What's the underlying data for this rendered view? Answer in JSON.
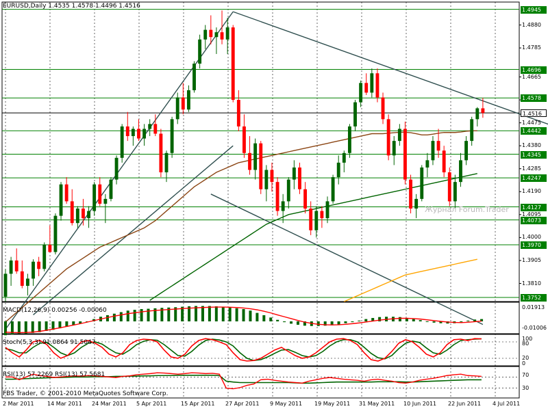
{
  "header": {
    "symbol_info": "EURUSD,Daily  1.4535 1.4578 1.4496 1.4516"
  },
  "footer": {
    "copyright": "FBS Trader, © 2001-2010 MetaQuotes Software Corp."
  },
  "watermark": "Журнал Forum.Trader",
  "colors": {
    "bull": "#006400",
    "bear": "#ff0000",
    "grid": "#000000",
    "hline": "#008000",
    "trend": "#2f4f4f",
    "ma_short": "#8b4513",
    "ma_mid": "#006400",
    "ma_long": "#ffa500"
  },
  "price_axis": {
    "labels": [
      "1.4880",
      "1.4785",
      "1.4665",
      "1.4570",
      "1.4475",
      "1.4380",
      "1.4285",
      "1.4190",
      "1.4095",
      "1.4000",
      "1.3905",
      "1.3810"
    ],
    "levels": [
      {
        "value": "1.4945"
      },
      {
        "value": "1.4696"
      },
      {
        "value": "1.4578"
      },
      {
        "value": "1.4516",
        "current": true
      },
      {
        "value": "1.4442"
      },
      {
        "value": "1.4345"
      },
      {
        "value": "1.4247"
      },
      {
        "value": "1.4127"
      },
      {
        "value": "1.4073"
      },
      {
        "value": "1.3970"
      },
      {
        "value": "1.3752"
      }
    ]
  },
  "dates": [
    "2 Mar 2011",
    "14 Mar 2011",
    "24 Mar 2011",
    "5 Apr 2011",
    "15 Apr 2011",
    "27 Apr 2011",
    "9 May 2011",
    "19 May 2011",
    "31 May 2011",
    "10 Jun 2011",
    "22 Jun 2011",
    "4 Jul 2011"
  ],
  "macd": {
    "label": "MACD(12,26,9) 0.00256 -0.00060",
    "axis": [
      "0.01913",
      "-0.01006"
    ],
    "histogram": [
      -0.9,
      -0.85,
      -0.8,
      -0.8,
      -0.75,
      -0.7,
      -0.62,
      -0.55,
      -0.45,
      -0.35,
      -0.25,
      -0.15,
      0,
      0.15,
      0.3,
      0.4,
      0.5,
      0.6,
      0.7,
      0.75,
      0.8,
      0.82,
      0.85,
      0.88,
      0.9,
      0.92,
      0.95,
      0.98,
      1,
      1,
      1,
      0.98,
      0.95,
      0.9,
      0.85,
      0.8,
      0.7,
      0.55,
      0.4,
      0.25,
      0.1,
      -0.05,
      -0.15,
      -0.22,
      -0.28,
      -0.3,
      -0.3,
      -0.28,
      -0.25,
      -0.2,
      -0.12,
      -0.05,
      0.05,
      0.15,
      0.22,
      0.28,
      0.3,
      0.3,
      0.28,
      0.22,
      0.15,
      0.08,
      0,
      -0.08,
      -0.12,
      -0.14,
      -0.12,
      -0.05,
      0.05,
      0.12,
      0.15
    ],
    "signal": [
      -0.7,
      -0.72,
      -0.73,
      -0.72,
      -0.7,
      -0.65,
      -0.58,
      -0.5,
      -0.42,
      -0.33,
      -0.24,
      -0.15,
      -0.05,
      0.05,
      0.15,
      0.25,
      0.34,
      0.42,
      0.5,
      0.56,
      0.62,
      0.67,
      0.71,
      0.74,
      0.77,
      0.8,
      0.83,
      0.86,
      0.88,
      0.9,
      0.92,
      0.93,
      0.93,
      0.92,
      0.9,
      0.87,
      0.82,
      0.75,
      0.66,
      0.55,
      0.42,
      0.3,
      0.18,
      0.06,
      -0.05,
      -0.13,
      -0.19,
      -0.22,
      -0.23,
      -0.22,
      -0.19,
      -0.15,
      -0.1,
      -0.04,
      0.02,
      0.08,
      0.13,
      0.17,
      0.2,
      0.2,
      0.18,
      0.15,
      0.1,
      0.05,
      0,
      -0.04,
      -0.07,
      -0.08,
      -0.06,
      -0.02,
      0.02
    ]
  },
  "stoch": {
    "label": "Stoch(5,3,3) 91.0864 91.5047",
    "axis": [
      "100",
      "80",
      "20",
      "0"
    ],
    "main": [
      60,
      40,
      25,
      50,
      80,
      85,
      70,
      40,
      20,
      30,
      55,
      80,
      85,
      75,
      60,
      35,
      25,
      40,
      70,
      85,
      90,
      88,
      80,
      50,
      25,
      20,
      35,
      65,
      85,
      92,
      88,
      80,
      70,
      40,
      15,
      10,
      12,
      20,
      35,
      50,
      60,
      45,
      30,
      20,
      25,
      40,
      60,
      80,
      90,
      92,
      85,
      70,
      40,
      15,
      10,
      20,
      45,
      75,
      88,
      80,
      60,
      35,
      25,
      40,
      70,
      88,
      90,
      85,
      92,
      91
    ],
    "signal": [
      55,
      50,
      40,
      40,
      60,
      75,
      78,
      60,
      40,
      30,
      40,
      60,
      75,
      80,
      72,
      55,
      40,
      35,
      50,
      70,
      82,
      88,
      86,
      70,
      50,
      30,
      28,
      45,
      68,
      85,
      90,
      87,
      80,
      65,
      40,
      20,
      12,
      15,
      25,
      38,
      50,
      52,
      42,
      30,
      25,
      30,
      45,
      65,
      80,
      88,
      88,
      80,
      60,
      38,
      22,
      18,
      30,
      55,
      75,
      83,
      78,
      58,
      40,
      35,
      50,
      70,
      85,
      88,
      90,
      91
    ]
  },
  "rsi": {
    "label": "RSI(13) 57.2269  RSI(13) 57.5681",
    "axis": [
      "70",
      "30"
    ],
    "line_red": [
      70,
      70,
      60,
      70,
      80,
      75,
      72,
      68,
      70,
      72,
      74,
      73,
      75,
      74,
      72,
      70,
      68,
      72,
      74,
      78,
      80,
      82,
      85,
      84,
      82,
      80,
      82,
      85,
      84,
      82,
      83,
      80,
      30,
      28,
      32,
      40,
      45,
      60,
      62,
      58,
      55,
      52,
      50,
      48,
      55,
      60,
      65,
      68,
      65,
      62,
      60,
      58,
      55,
      60,
      62,
      58,
      55,
      50,
      48,
      52,
      58,
      62,
      65,
      70,
      75,
      78,
      80,
      75,
      74,
      72
    ],
    "line_green": [
      62,
      62,
      63,
      64,
      65,
      66,
      67,
      68,
      68,
      69,
      70,
      70,
      70,
      71,
      71,
      71,
      72,
      72,
      73,
      73,
      74,
      74,
      75,
      75,
      75,
      76,
      76,
      76,
      76,
      76,
      76,
      75,
      55,
      52,
      50,
      50,
      50,
      50,
      50,
      50,
      50,
      50,
      49,
      48,
      48,
      49,
      50,
      51,
      52,
      52,
      52,
      52,
      52,
      52,
      53,
      53,
      53,
      53,
      52,
      52,
      53,
      54,
      55,
      56,
      57,
      58,
      59,
      60,
      60,
      60
    ]
  },
  "chart_data": {
    "type": "candlestick",
    "title": "EURUSD,Daily  1.4535 1.4578 1.4496 1.4516",
    "ylim": [
      1.3735,
      1.4975
    ],
    "candles": [
      [
        1.3755,
        1.387,
        1.3735,
        1.385
      ],
      [
        1.385,
        1.392,
        1.38,
        1.3905
      ],
      [
        1.3905,
        1.3955,
        1.385,
        1.386
      ],
      [
        1.386,
        1.3905,
        1.379,
        1.38
      ],
      [
        1.38,
        1.385,
        1.376,
        1.383
      ],
      [
        1.383,
        1.391,
        1.38,
        1.39
      ],
      [
        1.39,
        1.392,
        1.384,
        1.387
      ],
      [
        1.387,
        1.398,
        1.386,
        1.397
      ],
      [
        1.397,
        1.405,
        1.394,
        1.394
      ],
      [
        1.394,
        1.41,
        1.393,
        1.409
      ],
      [
        1.409,
        1.423,
        1.407,
        1.422
      ],
      [
        1.422,
        1.425,
        1.414,
        1.415
      ],
      [
        1.415,
        1.42,
        1.405,
        1.406
      ],
      [
        1.406,
        1.413,
        1.404,
        1.412
      ],
      [
        1.412,
        1.416,
        1.405,
        1.408
      ],
      [
        1.408,
        1.413,
        1.404,
        1.411
      ],
      [
        1.411,
        1.423,
        1.409,
        1.422
      ],
      [
        1.422,
        1.425,
        1.413,
        1.414
      ],
      [
        1.414,
        1.418,
        1.406,
        1.416
      ],
      [
        1.416,
        1.425,
        1.415,
        1.424
      ],
      [
        1.424,
        1.434,
        1.422,
        1.433
      ],
      [
        1.433,
        1.447,
        1.431,
        1.446
      ],
      [
        1.446,
        1.452,
        1.44,
        1.442
      ],
      [
        1.442,
        1.446,
        1.438,
        1.445
      ],
      [
        1.445,
        1.449,
        1.44,
        1.441
      ],
      [
        1.441,
        1.447,
        1.438,
        1.445
      ],
      [
        1.445,
        1.449,
        1.442,
        1.447
      ],
      [
        1.447,
        1.451,
        1.442,
        1.443
      ],
      [
        1.443,
        1.445,
        1.425,
        1.427
      ],
      [
        1.427,
        1.436,
        1.423,
        1.435
      ],
      [
        1.435,
        1.45,
        1.433,
        1.449
      ],
      [
        1.449,
        1.46,
        1.447,
        1.458
      ],
      [
        1.458,
        1.464,
        1.451,
        1.453
      ],
      [
        1.453,
        1.463,
        1.452,
        1.461
      ],
      [
        1.461,
        1.473,
        1.46,
        1.472
      ],
      [
        1.472,
        1.484,
        1.47,
        1.482
      ],
      [
        1.482,
        1.488,
        1.478,
        1.486
      ],
      [
        1.486,
        1.492,
        1.48,
        1.483
      ],
      [
        1.483,
        1.487,
        1.476,
        1.485
      ],
      [
        1.485,
        1.494,
        1.48,
        1.482
      ],
      [
        1.482,
        1.491,
        1.476,
        1.487
      ],
      [
        1.487,
        1.488,
        1.456,
        1.457
      ],
      [
        1.457,
        1.461,
        1.444,
        1.446
      ],
      [
        1.446,
        1.451,
        1.433,
        1.435
      ],
      [
        1.435,
        1.442,
        1.426,
        1.428
      ],
      [
        1.428,
        1.441,
        1.424,
        1.439
      ],
      [
        1.439,
        1.44,
        1.418,
        1.42
      ],
      [
        1.42,
        1.43,
        1.415,
        1.428
      ],
      [
        1.428,
        1.431,
        1.419,
        1.423
      ],
      [
        1.423,
        1.425,
        1.409,
        1.411
      ],
      [
        1.411,
        1.418,
        1.406,
        1.415
      ],
      [
        1.415,
        1.425,
        1.412,
        1.424
      ],
      [
        1.424,
        1.432,
        1.42,
        1.429
      ],
      [
        1.429,
        1.431,
        1.418,
        1.42
      ],
      [
        1.42,
        1.423,
        1.41,
        1.412
      ],
      [
        1.412,
        1.415,
        1.401,
        1.403
      ],
      [
        1.403,
        1.413,
        1.4,
        1.411
      ],
      [
        1.411,
        1.413,
        1.404,
        1.408
      ],
      [
        1.408,
        1.417,
        1.406,
        1.415
      ],
      [
        1.415,
        1.426,
        1.414,
        1.425
      ],
      [
        1.425,
        1.434,
        1.422,
        1.431
      ],
      [
        1.431,
        1.436,
        1.427,
        1.435
      ],
      [
        1.435,
        1.447,
        1.433,
        1.446
      ],
      [
        1.446,
        1.457,
        1.444,
        1.456
      ],
      [
        1.456,
        1.465,
        1.454,
        1.464
      ],
      [
        1.464,
        1.468,
        1.459,
        1.46
      ],
      [
        1.46,
        1.47,
        1.458,
        1.468
      ],
      [
        1.468,
        1.47,
        1.456,
        1.458
      ],
      [
        1.458,
        1.46,
        1.447,
        1.449
      ],
      [
        1.449,
        1.451,
        1.432,
        1.434
      ],
      [
        1.434,
        1.442,
        1.43,
        1.44
      ],
      [
        1.44,
        1.447,
        1.438,
        1.445
      ],
      [
        1.445,
        1.448,
        1.422,
        1.424
      ],
      [
        1.424,
        1.426,
        1.41,
        1.412
      ],
      [
        1.412,
        1.418,
        1.408,
        1.416
      ],
      [
        1.416,
        1.43,
        1.415,
        1.429
      ],
      [
        1.429,
        1.435,
        1.425,
        1.432
      ],
      [
        1.432,
        1.442,
        1.43,
        1.44
      ],
      [
        1.44,
        1.445,
        1.433,
        1.436
      ],
      [
        1.436,
        1.438,
        1.425,
        1.427
      ],
      [
        1.427,
        1.429,
        1.413,
        1.415
      ],
      [
        1.415,
        1.426,
        1.412,
        1.423
      ],
      [
        1.423,
        1.435,
        1.421,
        1.432
      ],
      [
        1.432,
        1.442,
        1.43,
        1.44
      ],
      [
        1.44,
        1.45,
        1.438,
        1.449
      ],
      [
        1.449,
        1.454,
        1.446,
        1.4535
      ],
      [
        1.4535,
        1.4578,
        1.4496,
        1.4516
      ]
    ],
    "ma_short": [
      1.365,
      1.367,
      1.369,
      1.371,
      1.373,
      1.375,
      1.377,
      1.379,
      1.381,
      1.383,
      1.385,
      1.387,
      1.3885,
      1.39,
      1.3915,
      1.393,
      1.3945,
      1.396,
      1.397,
      1.398,
      1.399,
      1.4,
      1.401,
      1.402,
      1.403,
      1.404,
      1.4055,
      1.407,
      1.409,
      1.411,
      1.413,
      1.415,
      1.417,
      1.419,
      1.421,
      1.4225,
      1.424,
      1.4255,
      1.427,
      1.428,
      1.429,
      1.43,
      1.431,
      1.4315,
      1.432,
      1.4325,
      1.433,
      1.4335,
      1.434,
      1.4345,
      1.435,
      1.4355,
      1.436,
      1.4365,
      1.437,
      1.4375,
      1.438,
      1.4385,
      1.439,
      1.4395,
      1.44,
      1.4405,
      1.441,
      1.4415,
      1.442,
      1.4425,
      1.443,
      1.443,
      1.443,
      1.4432,
      1.4434,
      1.4436,
      1.4436,
      1.4434,
      1.443,
      1.4425,
      1.4425,
      1.4428,
      1.4432,
      1.4435,
      1.4435,
      1.4435,
      1.4437,
      1.444,
      1.4442,
      1.4442
    ],
    "ma_mid": [
      null,
      null,
      null,
      null,
      null,
      null,
      null,
      null,
      null,
      null,
      null,
      null,
      null,
      null,
      null,
      null,
      null,
      null,
      null,
      null,
      null,
      null,
      null,
      null,
      null,
      null,
      1.374,
      1.3755,
      1.377,
      1.3785,
      1.38,
      1.3815,
      1.383,
      1.3845,
      1.386,
      1.3875,
      1.389,
      1.3905,
      1.392,
      1.3935,
      1.395,
      1.3965,
      1.398,
      1.3995,
      1.401,
      1.4025,
      1.404,
      1.4055,
      1.4065,
      1.4075,
      1.4085,
      1.4095,
      1.41,
      1.4105,
      1.411,
      1.4115,
      1.412,
      1.4125,
      1.413,
      1.4135,
      1.414,
      1.4145,
      1.415,
      1.4155,
      1.416,
      1.4165,
      1.417,
      1.4175,
      1.418,
      1.4185,
      1.419,
      1.4195,
      1.42,
      1.4205,
      1.421,
      1.4215,
      1.422,
      1.4225,
      1.423,
      1.4235,
      1.424,
      1.4245,
      1.425,
      1.4255,
      1.426,
      1.4265
    ],
    "ma_long": [
      null,
      null,
      null,
      null,
      null,
      null,
      null,
      null,
      null,
      null,
      null,
      null,
      null,
      null,
      null,
      null,
      null,
      null,
      null,
      null,
      null,
      null,
      null,
      null,
      null,
      null,
      null,
      null,
      null,
      null,
      null,
      null,
      null,
      null,
      null,
      null,
      null,
      null,
      null,
      null,
      null,
      null,
      null,
      null,
      null,
      null,
      null,
      null,
      null,
      null,
      null,
      null,
      null,
      null,
      null,
      null,
      null,
      null,
      null,
      null,
      null,
      1.3735,
      1.3745,
      1.3755,
      1.3765,
      1.3775,
      1.3785,
      1.3795,
      1.3805,
      1.3815,
      1.3825,
      1.3835,
      1.3845,
      1.385,
      1.3855,
      1.386,
      1.3865,
      1.387,
      1.3875,
      1.388,
      1.3885,
      1.389,
      1.3895,
      1.39,
      1.3905,
      1.391
    ]
  }
}
